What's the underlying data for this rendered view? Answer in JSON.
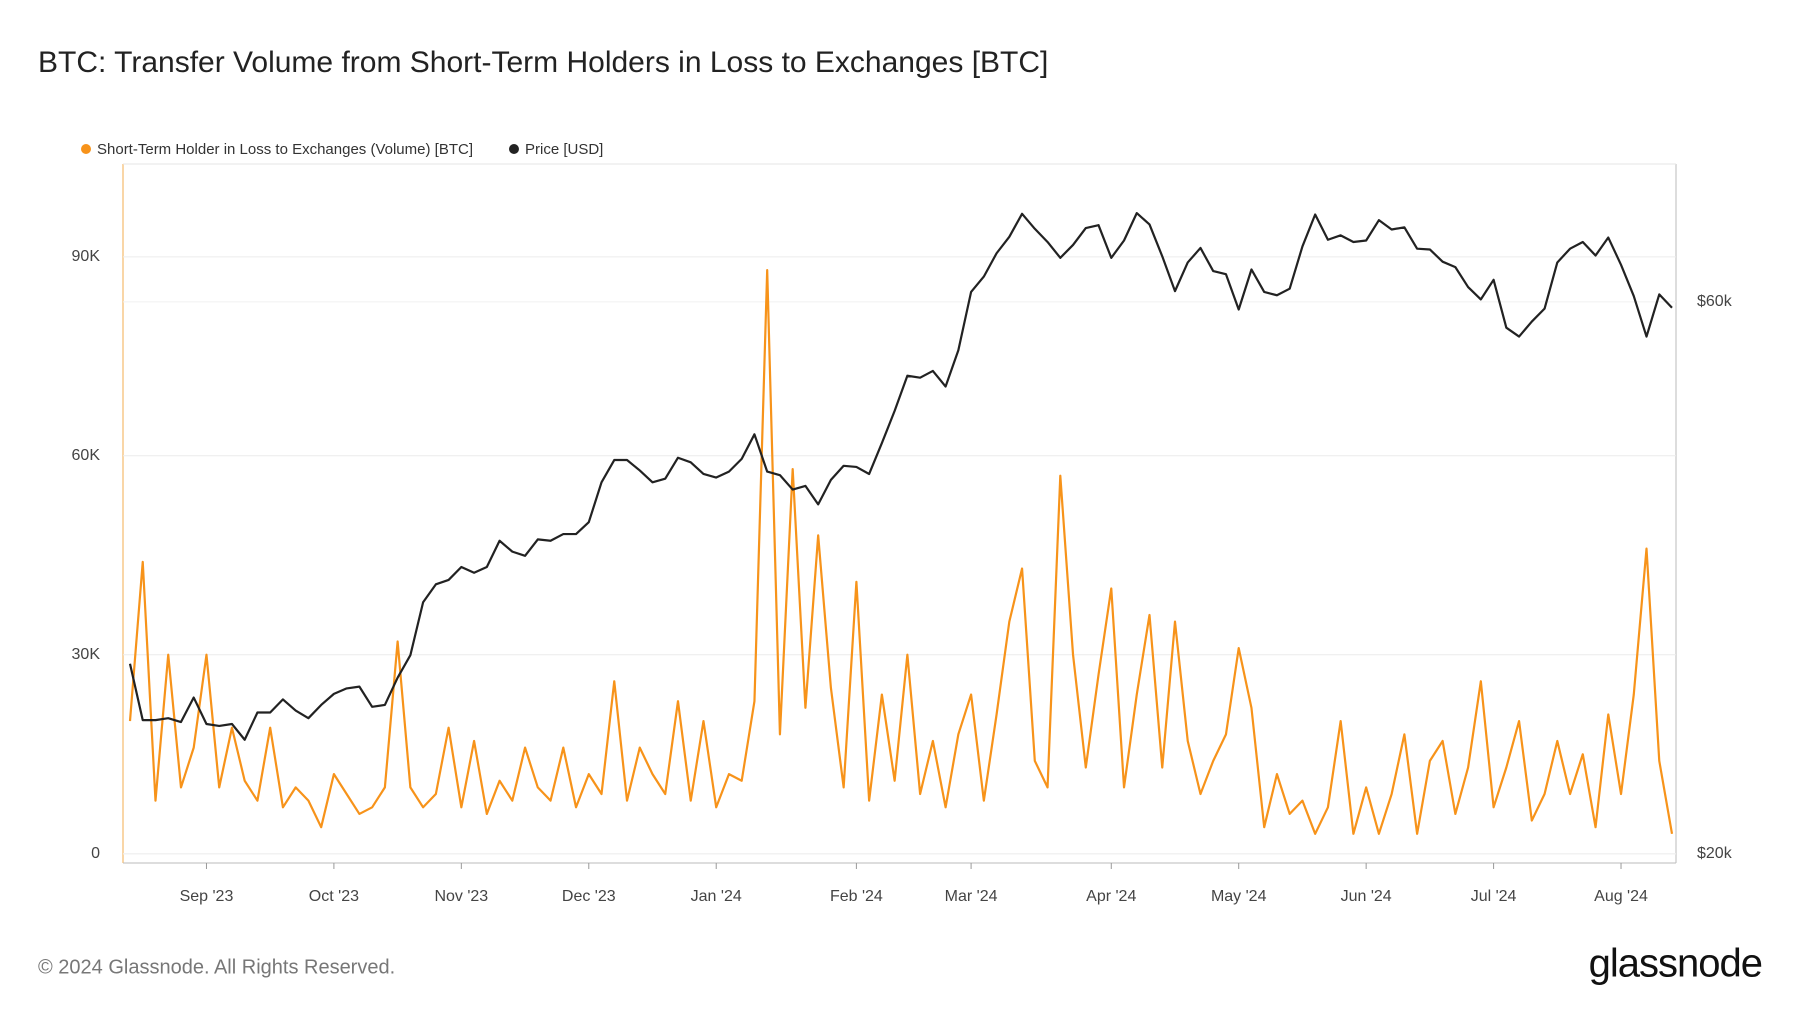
{
  "chart_data": {
    "type": "line",
    "title": "BTC: Transfer Volume from Short-Term Holders in Loss to Exchanges [BTC]",
    "footer": "© 2024 Glassnode. All Rights Reserved.",
    "brand": "glassnode",
    "categories": [
      null,
      null,
      null,
      null,
      null,
      null,
      "Sep '23",
      null,
      null,
      null,
      null,
      null,
      null,
      null,
      null,
      null,
      "Oct '23",
      null,
      null,
      null,
      null,
      null,
      null,
      null,
      null,
      null,
      "Nov '23",
      null,
      null,
      null,
      null,
      null,
      null,
      null,
      null,
      null,
      "Dec '23",
      null,
      null,
      null,
      null,
      null,
      null,
      null,
      null,
      null,
      "Jan '24",
      null,
      null,
      null,
      null,
      null,
      null,
      null,
      null,
      null,
      null,
      "Feb '24",
      null,
      null,
      null,
      null,
      null,
      null,
      null,
      null,
      "Mar '24",
      null,
      null,
      null,
      null,
      null,
      null,
      null,
      null,
      null,
      null,
      "Apr '24",
      null,
      null,
      null,
      null,
      null,
      null,
      null,
      null,
      null,
      "May '24",
      null,
      null,
      null,
      null,
      null,
      null,
      null,
      null,
      null,
      "Jun '24",
      null,
      null,
      null,
      null,
      null,
      null,
      null,
      null,
      null,
      "Jul '24",
      null,
      null,
      null,
      null,
      null,
      null,
      null,
      null,
      null,
      "Aug '24",
      null,
      null,
      null,
      null
    ],
    "series": [
      {
        "name": "Short-Term Holder in Loss to Exchanges (Volume) [BTC]",
        "color": "#f7931a",
        "axis": "y",
        "values": [
          20000,
          44000,
          8000,
          30000,
          10000,
          16000,
          30000,
          10000,
          19000,
          11000,
          8000,
          19000,
          7000,
          10000,
          8000,
          4000,
          12000,
          9000,
          6000,
          7000,
          10000,
          32000,
          10000,
          7000,
          9000,
          19000,
          7000,
          17000,
          6000,
          11000,
          8000,
          16000,
          10000,
          8000,
          16000,
          7000,
          12000,
          9000,
          26000,
          8000,
          16000,
          12000,
          9000,
          23000,
          8000,
          20000,
          7000,
          12000,
          11000,
          23000,
          88000,
          18000,
          58000,
          22000,
          48000,
          25000,
          10000,
          41000,
          8000,
          24000,
          11000,
          30000,
          9000,
          17000,
          7000,
          18000,
          24000,
          8000,
          21000,
          35000,
          43000,
          14000,
          10000,
          57000,
          30000,
          13000,
          27000,
          40000,
          10000,
          24000,
          36000,
          13000,
          35000,
          17000,
          9000,
          14000,
          18000,
          31000,
          22000,
          4000,
          12000,
          6000,
          8000,
          3000,
          7000,
          20000,
          3000,
          10000,
          3000,
          9000,
          18000,
          3000,
          14000,
          17000,
          6000,
          13000,
          26000,
          7000,
          13000,
          20000,
          5000,
          9000,
          17000,
          9000,
          15000,
          4000,
          21000,
          9000,
          24000,
          46000,
          14000,
          3000
        ]
      },
      {
        "name": "Price [USD]",
        "color": "#222222",
        "axis": "y2",
        "values": [
          29200,
          26100,
          26100,
          26200,
          26000,
          27300,
          25900,
          25800,
          25900,
          25100,
          26500,
          26500,
          27200,
          26600,
          26200,
          26900,
          27500,
          27800,
          27900,
          26800,
          26900,
          28400,
          29700,
          33000,
          34200,
          34500,
          35400,
          35000,
          35400,
          37300,
          36500,
          36200,
          37400,
          37300,
          37800,
          37800,
          38700,
          41900,
          43800,
          43800,
          42900,
          41900,
          42200,
          44000,
          43600,
          42600,
          42300,
          42800,
          43900,
          46100,
          42800,
          42500,
          41300,
          41600,
          40100,
          42100,
          43300,
          43200,
          42600,
          45300,
          48300,
          51800,
          51600,
          52300,
          50700,
          54500,
          61200,
          63100,
          66100,
          68300,
          71500,
          69400,
          67600,
          65500,
          67200,
          69500,
          69900,
          65500,
          67800,
          71600,
          70000,
          65700,
          61300,
          64900,
          66800,
          63800,
          63400,
          59100,
          64000,
          61200,
          60800,
          61600,
          67000,
          71400,
          67900,
          68500,
          67600,
          67800,
          70600,
          69300,
          69600,
          66700,
          66600,
          65000,
          64300,
          61800,
          60300,
          62700,
          57000,
          56000,
          57700,
          59200,
          64900,
          66700,
          67600,
          65800,
          68200,
          64600,
          60700,
          56000,
          60900,
          59300
        ]
      }
    ],
    "ylim": [
      -1400,
      104000
    ],
    "yticks": [
      0,
      {
        "value": 30000,
        "label": "30K"
      },
      {
        "value": 60000,
        "label": "60K"
      },
      {
        "value": 90000,
        "label": "90K"
      }
    ],
    "y2lim": [
      19640,
      78950
    ],
    "y2scale": "log",
    "y2ticks": [
      {
        "value": 20000,
        "label": "$20k"
      },
      {
        "value": 60000,
        "label": "$60k"
      }
    ],
    "grid": true
  }
}
